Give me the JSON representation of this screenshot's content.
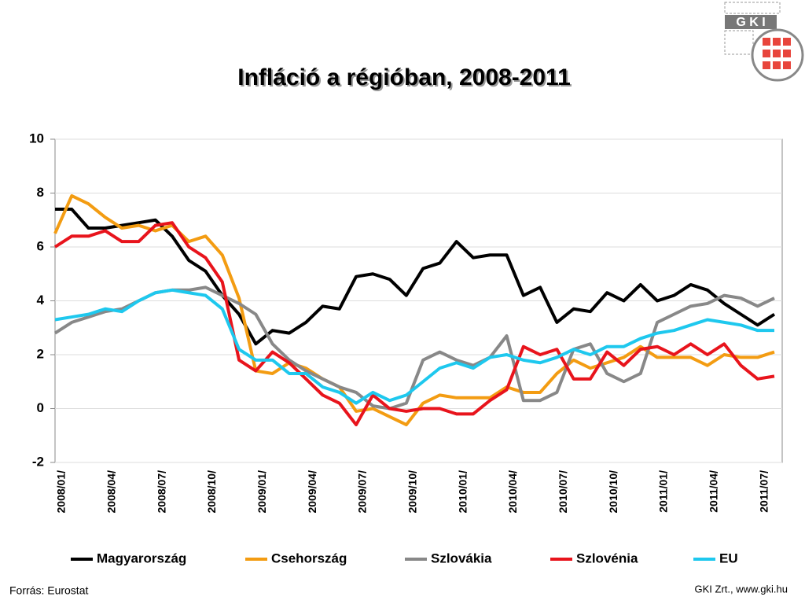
{
  "chart_data": {
    "type": "line",
    "title": "Infláció a régióban, 2008-2011",
    "source": "Forrás: Eurostat",
    "credit": "GKI Zrt., www.gki.hu",
    "logo": "G K I",
    "categories": [
      "2008/01/",
      null,
      null,
      "2008/04/",
      null,
      null,
      "2008/07/",
      null,
      null,
      "2008/10/",
      null,
      null,
      "2009/01/",
      null,
      null,
      "2009/04/",
      null,
      null,
      "2009/07/",
      null,
      null,
      "2009/10/",
      null,
      null,
      "2010/01/",
      null,
      null,
      "2010/04/",
      null,
      null,
      "2010/07/",
      null,
      null,
      "2010/10/",
      null,
      null,
      "2011/01/",
      null,
      null,
      "2011/04/",
      null,
      null,
      "2011/07/",
      null
    ],
    "series": [
      {
        "name": "Magyarország",
        "color": "#000000",
        "values": [
          7.4,
          7.4,
          6.7,
          6.7,
          6.8,
          6.9,
          7.0,
          6.4,
          5.5,
          5.1,
          4.2,
          3.5,
          2.4,
          2.9,
          2.8,
          3.2,
          3.8,
          3.7,
          4.9,
          5.0,
          4.8,
          4.2,
          5.2,
          5.4,
          6.2,
          5.6,
          5.7,
          5.7,
          4.2,
          4.5,
          3.2,
          3.7,
          3.6,
          4.3,
          4.0,
          4.6,
          4.0,
          4.2,
          4.6,
          4.4,
          3.9,
          3.5,
          3.1,
          3.5
        ]
      },
      {
        "name": "Csehország",
        "color": "#f39c12",
        "values": [
          6.5,
          7.9,
          7.6,
          7.1,
          6.7,
          6.8,
          6.6,
          6.8,
          6.2,
          6.4,
          5.7,
          4.1,
          1.4,
          1.3,
          1.7,
          1.5,
          1.1,
          0.8,
          -0.1,
          0.0,
          -0.3,
          -0.6,
          0.2,
          0.5,
          0.4,
          0.4,
          0.4,
          0.8,
          0.6,
          0.6,
          1.3,
          1.8,
          1.5,
          1.7,
          1.9,
          2.3,
          1.9,
          1.9,
          1.9,
          1.6,
          2.0,
          1.9,
          1.9,
          2.1
        ]
      },
      {
        "name": "Szlovákia",
        "color": "#888888",
        "values": [
          2.8,
          3.2,
          3.4,
          3.6,
          3.7,
          4.0,
          4.3,
          4.4,
          4.4,
          4.5,
          4.2,
          3.9,
          3.5,
          2.4,
          1.8,
          1.4,
          1.1,
          0.8,
          0.6,
          0.1,
          0.0,
          0.2,
          1.8,
          2.1,
          1.8,
          1.6,
          1.9,
          2.7,
          0.3,
          0.3,
          0.6,
          2.2,
          2.4,
          1.3,
          1.0,
          1.3,
          3.2,
          3.5,
          3.8,
          3.9,
          4.2,
          4.1,
          3.8,
          4.1
        ]
      },
      {
        "name": "Szlovénia",
        "color": "#e8141c",
        "values": [
          6.0,
          6.4,
          6.4,
          6.6,
          6.2,
          6.2,
          6.8,
          6.9,
          6.0,
          5.6,
          4.7,
          1.8,
          1.4,
          2.1,
          1.7,
          1.1,
          0.5,
          0.2,
          -0.6,
          0.5,
          0.0,
          -0.1,
          0.0,
          0.0,
          -0.2,
          -0.2,
          0.3,
          0.7,
          2.3,
          2.0,
          2.2,
          1.1,
          1.1,
          2.1,
          1.6,
          2.2,
          2.3,
          2.0,
          2.4,
          2.0,
          2.4,
          1.6,
          1.1,
          1.2
        ]
      },
      {
        "name": "EU",
        "color": "#1ec8ee",
        "values": [
          3.3,
          3.4,
          3.5,
          3.7,
          3.6,
          4.0,
          4.3,
          4.4,
          4.3,
          4.2,
          3.7,
          2.2,
          1.8,
          1.8,
          1.3,
          1.3,
          0.8,
          0.6,
          0.2,
          0.6,
          0.3,
          0.5,
          1.0,
          1.5,
          1.7,
          1.5,
          1.9,
          2.0,
          1.8,
          1.7,
          1.9,
          2.2,
          2.0,
          2.3,
          2.3,
          2.6,
          2.8,
          2.9,
          3.1,
          3.3,
          3.2,
          3.1,
          2.9,
          2.9
        ]
      }
    ],
    "ylim": [
      -2,
      10
    ],
    "yticks": [
      -2,
      0,
      2,
      4,
      6,
      8,
      10
    ],
    "grid": true,
    "legend": "bottom"
  }
}
